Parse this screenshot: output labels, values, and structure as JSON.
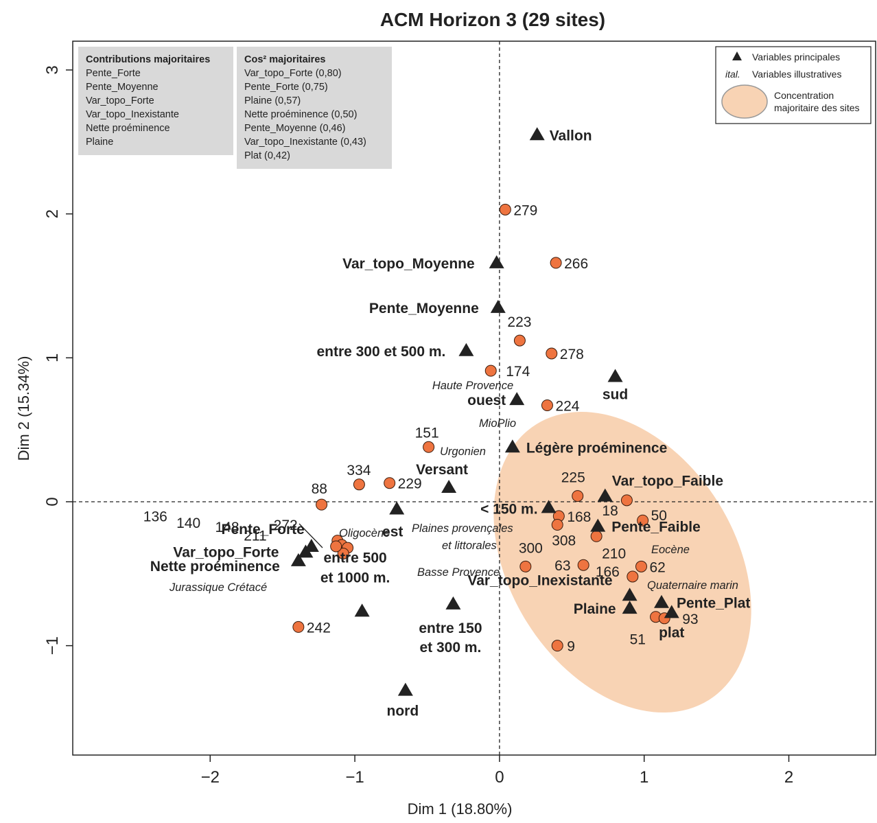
{
  "chart_data": {
    "type": "scatter",
    "title": "ACM Horizon 3 (29 sites)",
    "xlabel": "Dim 1 (18.80%)",
    "ylabel": "Dim 2 (15.34%)",
    "xlim": [
      -2.95,
      2.6
    ],
    "ylim": [
      -1.76,
      3.2
    ],
    "xticks": [
      -2,
      -1,
      0,
      1,
      2
    ],
    "yticks": [
      -1,
      0,
      1,
      2,
      3
    ],
    "colors": {
      "site": "#ee7440",
      "site_stroke": "#3a1d0e",
      "ellipse": "#f8d3b4",
      "box": "#d9d9d9",
      "var": "#222222"
    },
    "boxes": [
      {
        "title": "Contributions majoritaires",
        "items": [
          "Pente_Forte",
          "Pente_Moyenne",
          "Var_topo_Forte",
          "Var_topo_Inexistante",
          "Nette proéminence",
          "Plaine"
        ]
      },
      {
        "title": "Cos² majoritaires",
        "items": [
          "Var_topo_Forte (0,80)",
          "Pente_Forte (0,75)",
          "Plaine (0,57)",
          "Nette proéminence (0,50)",
          "Pente_Moyenne (0,46)",
          "Var_topo_Inexistante (0,43)",
          "Plat (0,42)"
        ]
      }
    ],
    "legend": {
      "position": "top-right",
      "principal": "Variables principales",
      "illus_key": "ital.",
      "illus": "Variables illustratives",
      "concentration": [
        "Concentration",
        "majoritaire des sites"
      ]
    },
    "ellipse": {
      "cx": 0.85,
      "cy": -0.42,
      "rx": 0.78,
      "ry": 1.13,
      "angle": -32
    },
    "sites": [
      {
        "label": "279",
        "x": 0.04,
        "y": 2.03
      },
      {
        "label": "266",
        "x": 0.39,
        "y": 1.66
      },
      {
        "label": "223",
        "x": 0.14,
        "y": 1.12
      },
      {
        "label": "278",
        "x": 0.36,
        "y": 1.03
      },
      {
        "label": "174",
        "x": -0.06,
        "y": 0.91
      },
      {
        "label": "224",
        "x": 0.33,
        "y": 0.67
      },
      {
        "label": "151",
        "x": -0.49,
        "y": 0.38
      },
      {
        "label": "334",
        "x": -0.97,
        "y": 0.12
      },
      {
        "label": "229",
        "x": -0.76,
        "y": 0.13
      },
      {
        "label": "88",
        "x": -1.23,
        "y": -0.02
      },
      {
        "label": "136",
        "x": -1.12,
        "y": -0.27
      },
      {
        "label": "140",
        "x": -1.09,
        "y": -0.3
      },
      {
        "label": "148",
        "x": -1.05,
        "y": -0.32
      },
      {
        "label": "211",
        "x": -1.08,
        "y": -0.36
      },
      {
        "label": "272",
        "x": -1.13,
        "y": -0.31
      },
      {
        "label": "242",
        "x": -1.39,
        "y": -0.87
      },
      {
        "label": "225",
        "x": 0.54,
        "y": 0.04
      },
      {
        "label": "18",
        "x": 0.88,
        "y": 0.01
      },
      {
        "label": "50",
        "x": 0.99,
        "y": -0.13
      },
      {
        "label": "168",
        "x": 0.41,
        "y": -0.1
      },
      {
        "label": "308",
        "x": 0.4,
        "y": -0.16
      },
      {
        "label": "210",
        "x": 0.67,
        "y": -0.24
      },
      {
        "label": "300",
        "x": 0.18,
        "y": -0.45
      },
      {
        "label": "63",
        "x": 0.58,
        "y": -0.44
      },
      {
        "label": "166",
        "x": 0.92,
        "y": -0.52
      },
      {
        "label": "62",
        "x": 0.98,
        "y": -0.45
      },
      {
        "label": "51",
        "x": 1.08,
        "y": -0.8
      },
      {
        "label": "93",
        "x": 1.14,
        "y": -0.81
      },
      {
        "label": "9",
        "x": 0.4,
        "y": -1.0
      }
    ],
    "variables": [
      {
        "label": "Vallon",
        "x": 0.26,
        "y": 2.55
      },
      {
        "label": "Var_topo_Moyenne",
        "x": -0.02,
        "y": 1.66
      },
      {
        "label": "Pente_Moyenne",
        "x": -0.01,
        "y": 1.35
      },
      {
        "label": "entre 300 et 500 m.",
        "x": -0.23,
        "y": 1.05
      },
      {
        "label": "sud",
        "x": 0.8,
        "y": 0.87
      },
      {
        "label": "ouest",
        "x": 0.12,
        "y": 0.71
      },
      {
        "label": "Légère proéminence",
        "x": 0.09,
        "y": 0.38
      },
      {
        "label": "Versant",
        "x": -0.35,
        "y": 0.1
      },
      {
        "label": "Var_topo_Faible",
        "x": 0.73,
        "y": 0.04
      },
      {
        "label": "< 150 m.",
        "x": 0.34,
        "y": -0.04
      },
      {
        "label": "est",
        "x": -0.71,
        "y": -0.05
      },
      {
        "label": "Pente_Faible",
        "x": 0.68,
        "y": -0.17
      },
      {
        "label": "Pente_Forte",
        "x": -1.3,
        "y": -0.31
      },
      {
        "label": "Var_topo_Forte",
        "x": -1.34,
        "y": -0.35
      },
      {
        "label": "Nette proéminence",
        "x": -1.39,
        "y": -0.41
      },
      {
        "label": "Var_topo_Inexistante",
        "x": 0.9,
        "y": -0.65
      },
      {
        "label": "Pente_Plat",
        "x": 1.12,
        "y": -0.7
      },
      {
        "label": "Plaine",
        "x": 0.9,
        "y": -0.74
      },
      {
        "label": "entre 150 et 300 m.",
        "x": -0.32,
        "y": -0.71
      },
      {
        "label": "plat",
        "x": 1.19,
        "y": -0.77
      },
      {
        "label": "entre 500 et 1000 m.",
        "x": -0.95,
        "y": -0.76
      },
      {
        "label": "nord",
        "x": -0.65,
        "y": -1.31
      }
    ],
    "illustrative": [
      {
        "label": "Haute Provence"
      },
      {
        "label": "MioPlio"
      },
      {
        "label": "Urgonien"
      },
      {
        "label": "Plaines provençales"
      },
      {
        "label": "et littorales"
      },
      {
        "label": "Oligocène"
      },
      {
        "label": "Eocène"
      },
      {
        "label": "Basse Provence"
      },
      {
        "label": "Quaternaire marin"
      },
      {
        "label": "Jurassique Crétacé"
      }
    ]
  }
}
